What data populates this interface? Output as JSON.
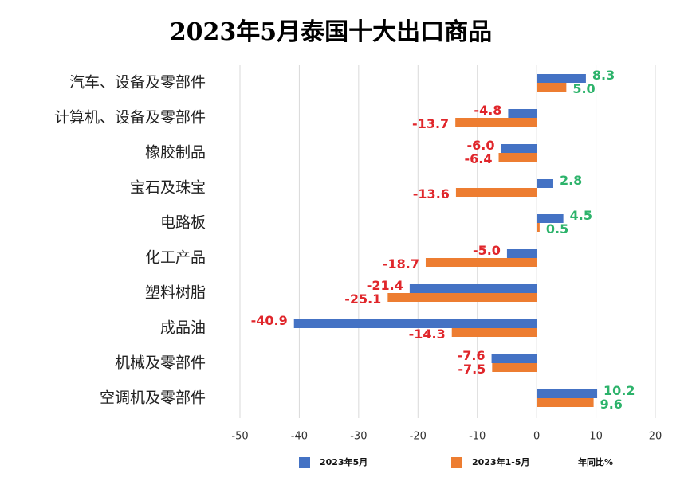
{
  "chart_data": {
    "type": "hbar",
    "title": "2023年5月泰国十大出口商品",
    "categories": [
      "汽车、设备及零部件",
      "计算机、设备及零部件",
      "橡胶制品",
      "宝石及珠宝",
      "电路板",
      "化工产品",
      "塑料树脂",
      "成品油",
      "机械及零部件",
      "空调机及零部件"
    ],
    "series": [
      {
        "name": "2023年5月",
        "color": "#4472c4",
        "values": [
          8.3,
          -4.8,
          -6.0,
          2.8,
          4.5,
          -5.0,
          -21.4,
          -40.9,
          -7.6,
          10.2
        ],
        "value_labels": [
          "8.3",
          "-4.8",
          "-6.0",
          "2.8",
          "4.5",
          "-5.0",
          "-21.4",
          "-40.9",
          "-7.6",
          "10.2"
        ]
      },
      {
        "name": "2023年1-5月",
        "color": "#ed7d31",
        "values": [
          5.0,
          -13.7,
          -6.4,
          -13.6,
          0.5,
          -18.7,
          -25.1,
          -14.3,
          -7.5,
          9.6
        ],
        "value_labels": [
          "5.0",
          "-13.7",
          "-6.4",
          "-13.6",
          "0.5",
          "-18.7",
          "-25.1",
          "-14.3",
          "-7.5",
          "9.6"
        ]
      }
    ],
    "xlim": [
      -50,
      20
    ],
    "xticks": [
      -50,
      -40,
      -30,
      -20,
      -10,
      0,
      10,
      20
    ],
    "unit_label": "年同比%",
    "grid": true
  }
}
